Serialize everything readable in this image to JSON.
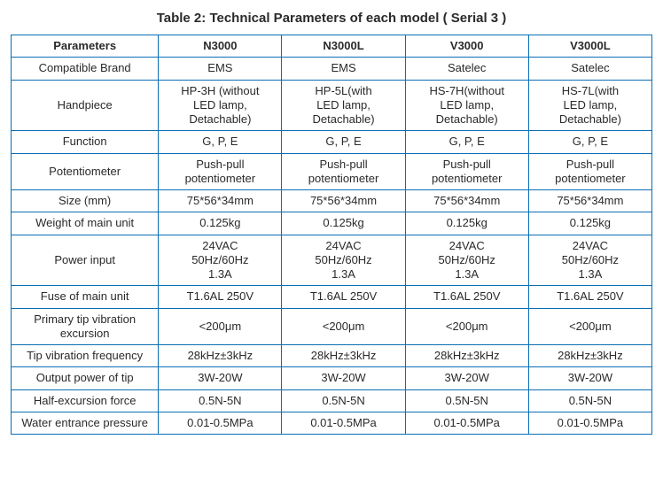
{
  "title": "Table 2: Technical Parameters of each model ( Serial  3 )",
  "border_color": "#0a6eb4",
  "text_color": "#2a2a2a",
  "background_color": "#ffffff",
  "columns": [
    "Parameters",
    "N3000",
    "N3000L",
    "V3000",
    "V3000L"
  ],
  "rows": [
    {
      "param": "Compatible Brand",
      "cells": [
        [
          "EMS"
        ],
        [
          "EMS"
        ],
        [
          "Satelec"
        ],
        [
          "Satelec"
        ]
      ]
    },
    {
      "param": "Handpiece",
      "cells": [
        [
          "HP-3H (without",
          "LED lamp,",
          "Detachable)"
        ],
        [
          "HP-5L(with",
          "LED lamp,",
          "Detachable)"
        ],
        [
          "HS-7H(without",
          "LED lamp,",
          "Detachable)"
        ],
        [
          "HS-7L(with",
          "LED lamp,",
          "Detachable)"
        ]
      ]
    },
    {
      "param": "Function",
      "cells": [
        [
          "G, P, E"
        ],
        [
          "G, P, E"
        ],
        [
          "G, P, E"
        ],
        [
          "G, P, E"
        ]
      ]
    },
    {
      "param": "Potentiometer",
      "cells": [
        [
          "Push-pull",
          "potentiometer"
        ],
        [
          "Push-pull",
          "potentiometer"
        ],
        [
          "Push-pull",
          "potentiometer"
        ],
        [
          "Push-pull",
          "potentiometer"
        ]
      ]
    },
    {
      "param": "Size (mm)",
      "cells": [
        [
          "75*56*34mm"
        ],
        [
          "75*56*34mm"
        ],
        [
          "75*56*34mm"
        ],
        [
          "75*56*34mm"
        ]
      ]
    },
    {
      "param": "Weight of main unit",
      "cells": [
        [
          "0.125kg"
        ],
        [
          "0.125kg"
        ],
        [
          "0.125kg"
        ],
        [
          "0.125kg"
        ]
      ]
    },
    {
      "param": "Power input",
      "cells": [
        [
          "24VAC",
          "50Hz/60Hz",
          "1.3A"
        ],
        [
          "24VAC",
          "50Hz/60Hz",
          "1.3A"
        ],
        [
          "24VAC",
          "50Hz/60Hz",
          "1.3A"
        ],
        [
          "24VAC",
          "50Hz/60Hz",
          "1.3A"
        ]
      ]
    },
    {
      "param": "Fuse of main unit",
      "cells": [
        [
          "T1.6AL 250V"
        ],
        [
          "T1.6AL 250V"
        ],
        [
          "T1.6AL 250V"
        ],
        [
          "T1.6AL 250V"
        ]
      ]
    },
    {
      "param": "Primary tip vibration excursion",
      "cells": [
        [
          "<200μm"
        ],
        [
          "<200μm"
        ],
        [
          "<200μm"
        ],
        [
          "<200μm"
        ]
      ]
    },
    {
      "param": "Tip vibration frequency",
      "cells": [
        [
          "28kHz±3kHz"
        ],
        [
          "28kHz±3kHz"
        ],
        [
          "28kHz±3kHz"
        ],
        [
          "28kHz±3kHz"
        ]
      ]
    },
    {
      "param": "Output power of tip",
      "cells": [
        [
          "3W-20W"
        ],
        [
          "3W-20W"
        ],
        [
          "3W-20W"
        ],
        [
          "3W-20W"
        ]
      ]
    },
    {
      "param": "Half-excursion force",
      "cells": [
        [
          "0.5N-5N"
        ],
        [
          "0.5N-5N"
        ],
        [
          "0.5N-5N"
        ],
        [
          "0.5N-5N"
        ]
      ]
    },
    {
      "param": "Water entrance pressure",
      "cells": [
        [
          "0.01-0.5MPa"
        ],
        [
          "0.01-0.5MPa"
        ],
        [
          "0.01-0.5MPa"
        ],
        [
          "0.01-0.5MPa"
        ]
      ]
    }
  ]
}
